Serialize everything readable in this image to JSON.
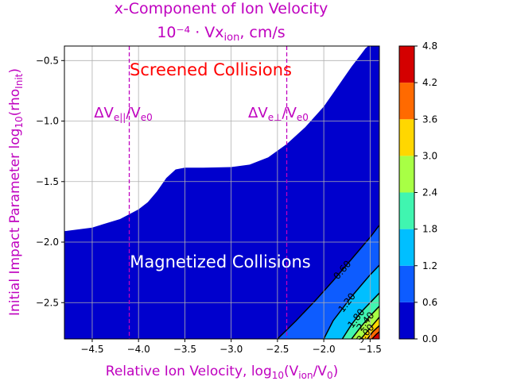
{
  "chart_data": {
    "type": "heatmap",
    "title_line1": "x-Component of Ion Velocity",
    "title_line2": "10⁻⁴ · Vx",
    "title_line2_sub": "ion",
    "title_line2_tail": ", cm/s",
    "xlabel": "Relative Ion Velocity,  log",
    "xlabel_sub1": "10",
    "xlabel_mid": "(V",
    "xlabel_sub2": "ion",
    "xlabel_tail": "/V",
    "xlabel_sub3": "0",
    "xlabel_end": ")",
    "ylabel": "Initial Impact Parameter log",
    "ylabel_sub1": "10",
    "ylabel_mid": "(rho",
    "ylabel_sub2": "Init",
    "ylabel_end": ")",
    "xlim": [
      -4.8,
      -1.4
    ],
    "ylim": [
      -2.8,
      -0.38
    ],
    "x_ticks": [
      -4.5,
      -4.0,
      -3.5,
      -3.0,
      -2.5,
      -2.0,
      -1.5
    ],
    "x_tick_labels": [
      "−4.5",
      "−4.0",
      "−3.5",
      "−3.0",
      "−2.5",
      "−2.0",
      "−1.5"
    ],
    "y_ticks": [
      -2.5,
      -2.0,
      -1.5,
      -1.0,
      -0.5
    ],
    "y_tick_labels": [
      "−2.5",
      "−2.0",
      "−1.5",
      "−1.0",
      "−0.5"
    ],
    "grid": true,
    "region_labels": {
      "screened": "Screened Collisions",
      "magnetized": "Magnetized Collisions"
    },
    "vlines": [
      {
        "x": -4.1,
        "label": "ΔV",
        "sub": "e||",
        "tail": "/V",
        "sub2": "e0"
      },
      {
        "x": -2.4,
        "label": "ΔV",
        "sub": "e⊥",
        "tail": "/V",
        "sub2": "e0"
      }
    ],
    "upper_boundary": [
      [
        -4.8,
        -1.91
      ],
      [
        -4.5,
        -1.88
      ],
      [
        -4.2,
        -1.81
      ],
      [
        -4.0,
        -1.73
      ],
      [
        -3.9,
        -1.67
      ],
      [
        -3.8,
        -1.58
      ],
      [
        -3.7,
        -1.47
      ],
      [
        -3.6,
        -1.4
      ],
      [
        -3.5,
        -1.385
      ],
      [
        -3.3,
        -1.385
      ],
      [
        -3.0,
        -1.38
      ],
      [
        -2.8,
        -1.36
      ],
      [
        -2.6,
        -1.3
      ],
      [
        -2.4,
        -1.19
      ],
      [
        -2.2,
        -1.05
      ],
      [
        -2.0,
        -0.88
      ],
      [
        -1.9,
        -0.77
      ],
      [
        -1.8,
        -0.66
      ],
      [
        -1.7,
        -0.55
      ],
      [
        -1.6,
        -0.45
      ],
      [
        -1.55,
        -0.4
      ],
      [
        -1.52,
        -0.38
      ]
    ],
    "contour_levels": [
      0.0,
      0.6,
      1.2,
      1.8,
      2.4,
      3.0,
      3.6,
      4.2,
      4.8
    ],
    "contour_lines": [
      {
        "level": 0.6,
        "label": "0.60",
        "points": [
          [
            -2.5,
            -2.8
          ],
          [
            -2.3,
            -2.65
          ],
          [
            -2.1,
            -2.49
          ],
          [
            -1.9,
            -2.32
          ],
          [
            -1.7,
            -2.14
          ],
          [
            -1.5,
            -1.96
          ],
          [
            -1.4,
            -1.86
          ]
        ]
      },
      {
        "level": 1.2,
        "label": "1.20",
        "points": [
          [
            -2.0,
            -2.8
          ],
          [
            -1.9,
            -2.65
          ],
          [
            -1.8,
            -2.55
          ],
          [
            -1.7,
            -2.45
          ],
          [
            -1.6,
            -2.36
          ],
          [
            -1.5,
            -2.27
          ],
          [
            -1.4,
            -2.19
          ]
        ]
      },
      {
        "level": 1.8,
        "label": "1.80",
        "points": [
          [
            -1.8,
            -2.8
          ],
          [
            -1.7,
            -2.68
          ],
          [
            -1.6,
            -2.58
          ],
          [
            -1.5,
            -2.5
          ],
          [
            -1.4,
            -2.42
          ]
        ]
      },
      {
        "level": 2.4,
        "label": "2.40",
        "points": [
          [
            -1.7,
            -2.8
          ],
          [
            -1.6,
            -2.7
          ],
          [
            -1.5,
            -2.61
          ],
          [
            -1.4,
            -2.53
          ]
        ]
      },
      {
        "level": 3.0,
        "label": "3.00",
        "points": [
          [
            -1.6,
            -2.8
          ],
          [
            -1.5,
            -2.71
          ],
          [
            -1.4,
            -2.62
          ]
        ]
      },
      {
        "level": 3.6,
        "label": "",
        "points": [
          [
            -1.53,
            -2.8
          ],
          [
            -1.47,
            -2.74
          ],
          [
            -1.4,
            -2.69
          ]
        ]
      },
      {
        "level": 4.2,
        "label": "",
        "points": [
          [
            -1.48,
            -2.8
          ],
          [
            -1.43,
            -2.76
          ],
          [
            -1.4,
            -2.74
          ]
        ]
      }
    ],
    "colorbar": {
      "levels": [
        0.0,
        0.6,
        1.2,
        1.8,
        2.4,
        3.0,
        3.6,
        4.2,
        4.8
      ],
      "labels": [
        "0.0",
        "0.6",
        "1.2",
        "1.8",
        "2.4",
        "3.0",
        "3.6",
        "4.2",
        "4.8"
      ],
      "colors": [
        "#0000cd",
        "#0d5cff",
        "#00bfff",
        "#40f5b0",
        "#a8ff45",
        "#ffd700",
        "#ff6a00",
        "#d40000"
      ]
    },
    "title_color": "#bf00bf",
    "screened_color": "#ff0000",
    "magnetized_color": "#ffffff"
  }
}
